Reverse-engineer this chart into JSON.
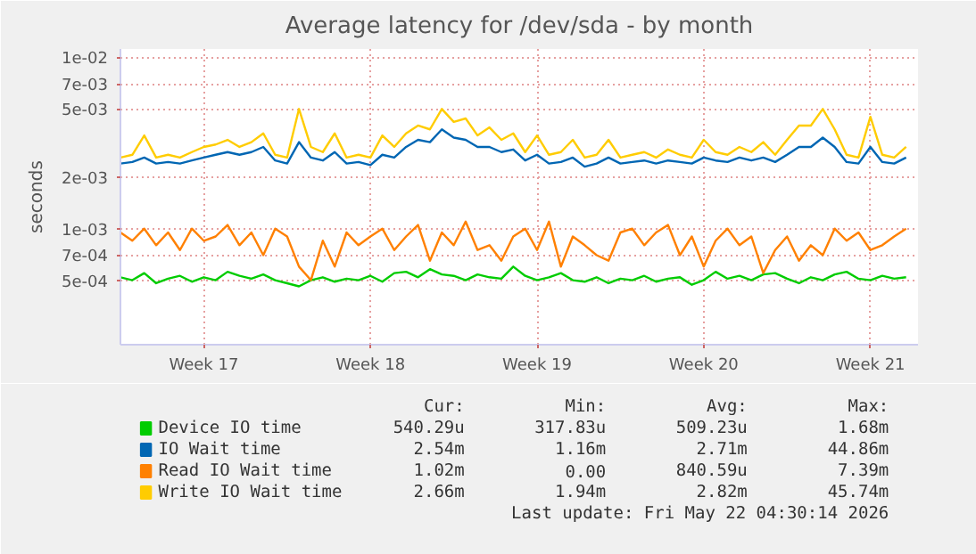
{
  "chart_data": {
    "type": "line",
    "title": "Average latency for /dev/sda - by month",
    "ylabel": "seconds",
    "log": "y",
    "grid": true,
    "legend": "bottom",
    "marker": "none",
    "line_style": "solid",
    "ylim": [
      0.00021,
      0.0112
    ],
    "categories": [
      null,
      null,
      null,
      null,
      null,
      null,
      null,
      "Week 17",
      null,
      null,
      null,
      null,
      null,
      null,
      null,
      null,
      null,
      null,
      null,
      null,
      null,
      "Week 18",
      null,
      null,
      null,
      null,
      null,
      null,
      null,
      null,
      null,
      null,
      null,
      null,
      null,
      "Week 19",
      null,
      null,
      null,
      null,
      null,
      null,
      null,
      null,
      null,
      null,
      null,
      null,
      null,
      "Week 20",
      null,
      null,
      null,
      null,
      null,
      null,
      null,
      null,
      null,
      null,
      null,
      null,
      null,
      "Week 21",
      null,
      null,
      null
    ],
    "yticks": [
      {
        "value": 0.0005,
        "label": "5e-04"
      },
      {
        "value": 0.0007,
        "label": "7e-04"
      },
      {
        "value": 0.001,
        "label": "1e-03"
      },
      {
        "value": 0.002,
        "label": "2e-03"
      },
      {
        "value": 0.005,
        "label": "5e-03"
      },
      {
        "value": 0.007,
        "label": "7e-03"
      },
      {
        "value": 0.01,
        "label": "1e-02"
      }
    ],
    "series": [
      {
        "name": "Device IO time",
        "color": "#00cc00",
        "values": [
          0.00052,
          0.0005,
          0.00055,
          0.00048,
          0.00051,
          0.00053,
          0.00049,
          0.00052,
          0.0005,
          0.00056,
          0.00053,
          0.00051,
          0.00054,
          0.0005,
          0.00048,
          0.00046,
          0.0005,
          0.00052,
          0.00049,
          0.00051,
          0.0005,
          0.00053,
          0.00049,
          0.00055,
          0.00056,
          0.00052,
          0.00058,
          0.00054,
          0.00053,
          0.0005,
          0.00054,
          0.00052,
          0.00051,
          0.0006,
          0.00053,
          0.0005,
          0.00052,
          0.00055,
          0.0005,
          0.00049,
          0.00052,
          0.00048,
          0.00051,
          0.0005,
          0.00053,
          0.00049,
          0.00051,
          0.00052,
          0.00047,
          0.0005,
          0.00056,
          0.00051,
          0.00053,
          0.0005,
          0.00054,
          0.00055,
          0.00051,
          0.00048,
          0.00052,
          0.0005,
          0.00054,
          0.00056,
          0.00051,
          0.0005,
          0.00053,
          0.00051,
          0.00052
        ]
      },
      {
        "name": "IO Wait time",
        "color": "#0066b3",
        "values": [
          0.0024,
          0.00245,
          0.0026,
          0.0024,
          0.00245,
          0.0024,
          0.0025,
          0.0026,
          0.0027,
          0.0028,
          0.0027,
          0.0028,
          0.003,
          0.0025,
          0.0024,
          0.0032,
          0.0026,
          0.0025,
          0.0028,
          0.0024,
          0.00245,
          0.00235,
          0.0027,
          0.0026,
          0.003,
          0.0033,
          0.0032,
          0.0038,
          0.0034,
          0.0033,
          0.003,
          0.003,
          0.0028,
          0.0029,
          0.0025,
          0.0027,
          0.0024,
          0.00245,
          0.0026,
          0.0023,
          0.0024,
          0.0026,
          0.0024,
          0.00245,
          0.0025,
          0.0024,
          0.0025,
          0.00245,
          0.0024,
          0.0026,
          0.0025,
          0.00245,
          0.0026,
          0.0025,
          0.0026,
          0.00245,
          0.0027,
          0.003,
          0.003,
          0.0034,
          0.003,
          0.00245,
          0.0024,
          0.003,
          0.00245,
          0.0024,
          0.0026
        ]
      },
      {
        "name": "Read IO Wait time",
        "color": "#ff8000",
        "values": [
          0.00095,
          0.00085,
          0.001,
          0.0008,
          0.00095,
          0.00075,
          0.001,
          0.00085,
          0.0009,
          0.00105,
          0.0008,
          0.00095,
          0.0007,
          0.001,
          0.0009,
          0.0006,
          0.0005,
          0.00085,
          0.0006,
          0.00095,
          0.0008,
          0.0009,
          0.001,
          0.00075,
          0.0009,
          0.00105,
          0.00065,
          0.00095,
          0.0008,
          0.0011,
          0.00075,
          0.0008,
          0.00065,
          0.0009,
          0.001,
          0.00075,
          0.0011,
          0.0006,
          0.0009,
          0.0008,
          0.0007,
          0.00065,
          0.00095,
          0.001,
          0.0008,
          0.00095,
          0.00105,
          0.0007,
          0.0009,
          0.0006,
          0.00085,
          0.001,
          0.0008,
          0.0009,
          0.00055,
          0.00075,
          0.0009,
          0.00065,
          0.0008,
          0.0007,
          0.001,
          0.00085,
          0.00095,
          0.00075,
          0.0008,
          0.0009,
          0.001
        ]
      },
      {
        "name": "Write IO Wait time",
        "color": "#ffcc00",
        "values": [
          0.0026,
          0.0027,
          0.0035,
          0.0026,
          0.0027,
          0.0026,
          0.0028,
          0.003,
          0.0031,
          0.0033,
          0.003,
          0.0032,
          0.0036,
          0.0027,
          0.0026,
          0.005,
          0.003,
          0.0028,
          0.0036,
          0.0026,
          0.0027,
          0.0026,
          0.0035,
          0.003,
          0.0036,
          0.004,
          0.0038,
          0.005,
          0.0042,
          0.0044,
          0.0035,
          0.0039,
          0.0033,
          0.0036,
          0.0028,
          0.0035,
          0.0027,
          0.0028,
          0.0033,
          0.0026,
          0.0027,
          0.0033,
          0.0026,
          0.0027,
          0.0028,
          0.0026,
          0.0029,
          0.0027,
          0.0026,
          0.0033,
          0.0028,
          0.0027,
          0.003,
          0.0028,
          0.0032,
          0.0027,
          0.0033,
          0.004,
          0.004,
          0.005,
          0.0038,
          0.0027,
          0.0026,
          0.0045,
          0.0027,
          0.0026,
          0.003
        ]
      }
    ],
    "annotations": [
      "Cur:",
      "Min:",
      "Avg:",
      "Max:",
      "540.29u",
      "317.83u",
      "509.23u",
      "1.68m",
      "2.54m",
      "1.16m",
      "2.71m",
      "44.86m",
      "1.02m",
      "0.00",
      "840.59u",
      "7.39m",
      "2.66m",
      "1.94m",
      "2.82m",
      "45.74m",
      "Last update: Fri May 22 04:30:14 2026"
    ]
  }
}
